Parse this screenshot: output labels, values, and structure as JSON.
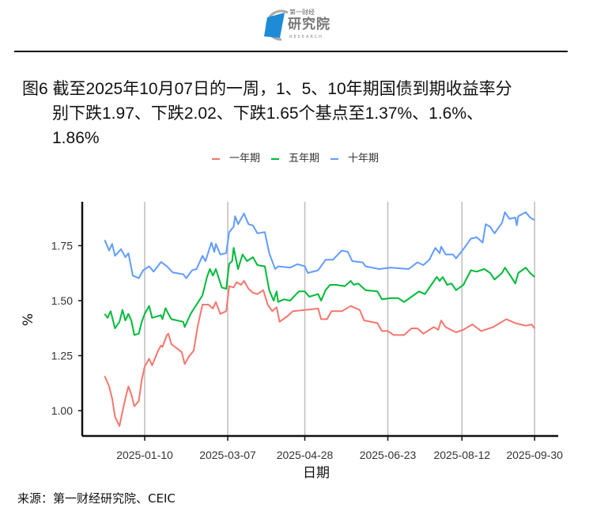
{
  "header": {
    "logo_small": "第一财经",
    "logo_main": "研究院",
    "logo_sub": "RESEARCH"
  },
  "title": {
    "line1": "图6  截至2025年10月07日的一周，1、5、10年期国债到期收益率分",
    "line2": "别下跌1.97、下跌2.02、下跌1.65个基点至1.37%、1.6%、",
    "line3": "1.86%"
  },
  "source": "来源：第一财经研究院、CEIC",
  "chart_data": {
    "type": "line",
    "title": "",
    "xlabel": "日期",
    "ylabel": "%",
    "x_unit": "day of year 2025 (Jan 1 = 1)",
    "xlim": [
      -20,
      289
    ],
    "ylim": [
      0.875,
      1.95
    ],
    "grid": "vertical major",
    "legend_position": "top",
    "xticks": [
      {
        "day": 10,
        "label": "2025-01-10"
      },
      {
        "day": 66,
        "label": "2025-03-07"
      },
      {
        "day": 118,
        "label": "2025-04-28"
      },
      {
        "day": 174,
        "label": "2025-06-23"
      },
      {
        "day": 224,
        "label": "2025-08-12"
      },
      {
        "day": 273,
        "label": "2025-09-30"
      }
    ],
    "yticks": [
      {
        "value": 1.0,
        "label": "1.00"
      },
      {
        "value": 1.25,
        "label": "1.25"
      },
      {
        "value": 1.5,
        "label": "1.50"
      },
      {
        "value": 1.75,
        "label": "1.75"
      }
    ],
    "series": [
      {
        "name": "一年期",
        "color": "#F8766D",
        "points": [
          [
            -17,
            1.158
          ],
          [
            -14,
            1.11
          ],
          [
            -12,
            1.056
          ],
          [
            -10,
            0.972
          ],
          [
            -7,
            0.93
          ],
          [
            -5,
            0.996
          ],
          [
            -3,
            1.056
          ],
          [
            -1,
            1.11
          ],
          [
            1,
            1.074
          ],
          [
            3,
            1.02
          ],
          [
            6,
            1.044
          ],
          [
            8,
            1.14
          ],
          [
            10,
            1.2
          ],
          [
            13,
            1.236
          ],
          [
            15,
            1.206
          ],
          [
            19,
            1.272
          ],
          [
            21,
            1.296
          ],
          [
            22,
            1.29
          ],
          [
            25,
            1.344
          ],
          [
            26,
            1.35
          ],
          [
            28,
            1.302
          ],
          [
            35,
            1.266
          ],
          [
            37,
            1.212
          ],
          [
            40,
            1.248
          ],
          [
            43,
            1.272
          ],
          [
            46,
            1.392
          ],
          [
            49,
            1.482
          ],
          [
            53,
            1.482
          ],
          [
            56,
            1.464
          ],
          [
            58,
            1.494
          ],
          [
            61,
            1.44
          ],
          [
            65,
            1.452
          ],
          [
            67,
            1.566
          ],
          [
            70,
            1.56
          ],
          [
            72,
            1.584
          ],
          [
            75,
            1.572
          ],
          [
            77,
            1.59
          ],
          [
            80,
            1.554
          ],
          [
            83,
            1.536
          ],
          [
            86,
            1.53
          ],
          [
            90,
            1.548
          ],
          [
            93,
            1.482
          ],
          [
            96,
            1.452
          ],
          [
            99,
            1.47
          ],
          [
            101,
            1.404
          ],
          [
            106,
            1.428
          ],
          [
            110,
            1.452
          ],
          [
            118,
            1.458
          ],
          [
            127,
            1.464
          ],
          [
            129,
            1.416
          ],
          [
            133,
            1.416
          ],
          [
            136,
            1.452
          ],
          [
            143,
            1.452
          ],
          [
            149,
            1.476
          ],
          [
            155,
            1.458
          ],
          [
            158,
            1.41
          ],
          [
            167,
            1.398
          ],
          [
            170,
            1.362
          ],
          [
            174,
            1.362
          ],
          [
            178,
            1.344
          ],
          [
            185,
            1.344
          ],
          [
            190,
            1.374
          ],
          [
            194,
            1.374
          ],
          [
            198,
            1.35
          ],
          [
            205,
            1.38
          ],
          [
            208,
            1.368
          ],
          [
            210,
            1.41
          ],
          [
            213,
            1.38
          ],
          [
            220,
            1.356
          ],
          [
            225,
            1.368
          ],
          [
            231,
            1.392
          ],
          [
            237,
            1.362
          ],
          [
            245,
            1.38
          ],
          [
            251,
            1.404
          ],
          [
            254,
            1.416
          ],
          [
            260,
            1.398
          ],
          [
            267,
            1.386
          ],
          [
            271,
            1.392
          ],
          [
            273,
            1.374
          ]
        ]
      },
      {
        "name": "五年期",
        "color": "#00BA38",
        "points": [
          [
            -17,
            1.44
          ],
          [
            -15,
            1.422
          ],
          [
            -13,
            1.452
          ],
          [
            -10,
            1.374
          ],
          [
            -7,
            1.404
          ],
          [
            -5,
            1.458
          ],
          [
            -3,
            1.41
          ],
          [
            -1,
            1.44
          ],
          [
            1,
            1.41
          ],
          [
            3,
            1.344
          ],
          [
            6,
            1.35
          ],
          [
            8,
            1.404
          ],
          [
            10,
            1.44
          ],
          [
            13,
            1.476
          ],
          [
            15,
            1.422
          ],
          [
            21,
            1.434
          ],
          [
            22,
            1.416
          ],
          [
            24,
            1.466
          ],
          [
            26,
            1.44
          ],
          [
            28,
            1.416
          ],
          [
            36,
            1.404
          ],
          [
            37,
            1.38
          ],
          [
            41,
            1.44
          ],
          [
            45,
            1.482
          ],
          [
            49,
            1.524
          ],
          [
            52,
            1.608
          ],
          [
            54,
            1.644
          ],
          [
            56,
            1.614
          ],
          [
            58,
            1.644
          ],
          [
            62,
            1.56
          ],
          [
            65,
            1.554
          ],
          [
            67,
            1.668
          ],
          [
            69,
            1.68
          ],
          [
            70,
            1.74
          ],
          [
            73,
            1.644
          ],
          [
            76,
            1.71
          ],
          [
            79,
            1.68
          ],
          [
            83,
            1.698
          ],
          [
            86,
            1.662
          ],
          [
            91,
            1.656
          ],
          [
            94,
            1.548
          ],
          [
            97,
            1.5
          ],
          [
            99,
            1.542
          ],
          [
            100,
            1.494
          ],
          [
            104,
            1.506
          ],
          [
            108,
            1.5
          ],
          [
            114,
            1.542
          ],
          [
            118,
            1.542
          ],
          [
            121,
            1.518
          ],
          [
            127,
            1.53
          ],
          [
            129,
            1.5
          ],
          [
            132,
            1.548
          ],
          [
            135,
            1.572
          ],
          [
            139,
            1.572
          ],
          [
            145,
            1.566
          ],
          [
            149,
            1.59
          ],
          [
            151,
            1.572
          ],
          [
            154,
            1.578
          ],
          [
            159,
            1.548
          ],
          [
            167,
            1.542
          ],
          [
            170,
            1.506
          ],
          [
            176,
            1.512
          ],
          [
            181,
            1.512
          ],
          [
            185,
            1.494
          ],
          [
            190,
            1.518
          ],
          [
            195,
            1.542
          ],
          [
            199,
            1.53
          ],
          [
            207,
            1.608
          ],
          [
            209,
            1.59
          ],
          [
            211,
            1.608
          ],
          [
            214,
            1.572
          ],
          [
            217,
            1.578
          ],
          [
            220,
            1.548
          ],
          [
            225,
            1.572
          ],
          [
            230,
            1.638
          ],
          [
            234,
            1.632
          ],
          [
            239,
            1.644
          ],
          [
            243,
            1.626
          ],
          [
            246,
            1.596
          ],
          [
            251,
            1.626
          ],
          [
            253,
            1.65
          ],
          [
            256,
            1.62
          ],
          [
            260,
            1.578
          ],
          [
            262,
            1.626
          ],
          [
            267,
            1.65
          ],
          [
            270,
            1.626
          ],
          [
            273,
            1.608
          ]
        ]
      },
      {
        "name": "十年期",
        "color": "#619CFF",
        "points": [
          [
            -17,
            1.776
          ],
          [
            -14,
            1.728
          ],
          [
            -12,
            1.758
          ],
          [
            -10,
            1.704
          ],
          [
            -6,
            1.734
          ],
          [
            -3,
            1.698
          ],
          [
            -1,
            1.716
          ],
          [
            2,
            1.614
          ],
          [
            6,
            1.602
          ],
          [
            9,
            1.638
          ],
          [
            13,
            1.656
          ],
          [
            16,
            1.632
          ],
          [
            21,
            1.676
          ],
          [
            25,
            1.656
          ],
          [
            29,
            1.628
          ],
          [
            36,
            1.62
          ],
          [
            38,
            1.602
          ],
          [
            42,
            1.638
          ],
          [
            45,
            1.644
          ],
          [
            49,
            1.704
          ],
          [
            51,
            1.68
          ],
          [
            55,
            1.764
          ],
          [
            57,
            1.722
          ],
          [
            58,
            1.758
          ],
          [
            61,
            1.71
          ],
          [
            65,
            1.716
          ],
          [
            67,
            1.812
          ],
          [
            70,
            1.836
          ],
          [
            71,
            1.884
          ],
          [
            73,
            1.848
          ],
          [
            77,
            1.896
          ],
          [
            80,
            1.848
          ],
          [
            83,
            1.842
          ],
          [
            86,
            1.806
          ],
          [
            91,
            1.812
          ],
          [
            94,
            1.716
          ],
          [
            98,
            1.644
          ],
          [
            100,
            1.656
          ],
          [
            108,
            1.65
          ],
          [
            113,
            1.666
          ],
          [
            118,
            1.656
          ],
          [
            120,
            1.626
          ],
          [
            127,
            1.638
          ],
          [
            132,
            1.686
          ],
          [
            137,
            1.686
          ],
          [
            143,
            1.728
          ],
          [
            147,
            1.722
          ],
          [
            150,
            1.68
          ],
          [
            157,
            1.674
          ],
          [
            159,
            1.656
          ],
          [
            168,
            1.644
          ],
          [
            176,
            1.65
          ],
          [
            188,
            1.644
          ],
          [
            194,
            1.674
          ],
          [
            198,
            1.662
          ],
          [
            202,
            1.686
          ],
          [
            206,
            1.74
          ],
          [
            209,
            1.716
          ],
          [
            210,
            1.746
          ],
          [
            213,
            1.71
          ],
          [
            218,
            1.71
          ],
          [
            220,
            1.692
          ],
          [
            225,
            1.734
          ],
          [
            230,
            1.782
          ],
          [
            234,
            1.788
          ],
          [
            238,
            1.764
          ],
          [
            240,
            1.848
          ],
          [
            243,
            1.836
          ],
          [
            246,
            1.806
          ],
          [
            251,
            1.854
          ],
          [
            253,
            1.902
          ],
          [
            256,
            1.872
          ],
          [
            260,
            1.878
          ],
          [
            261,
            1.842
          ],
          [
            262,
            1.884
          ],
          [
            267,
            1.902
          ],
          [
            270,
            1.878
          ],
          [
            273,
            1.866
          ]
        ]
      }
    ]
  }
}
